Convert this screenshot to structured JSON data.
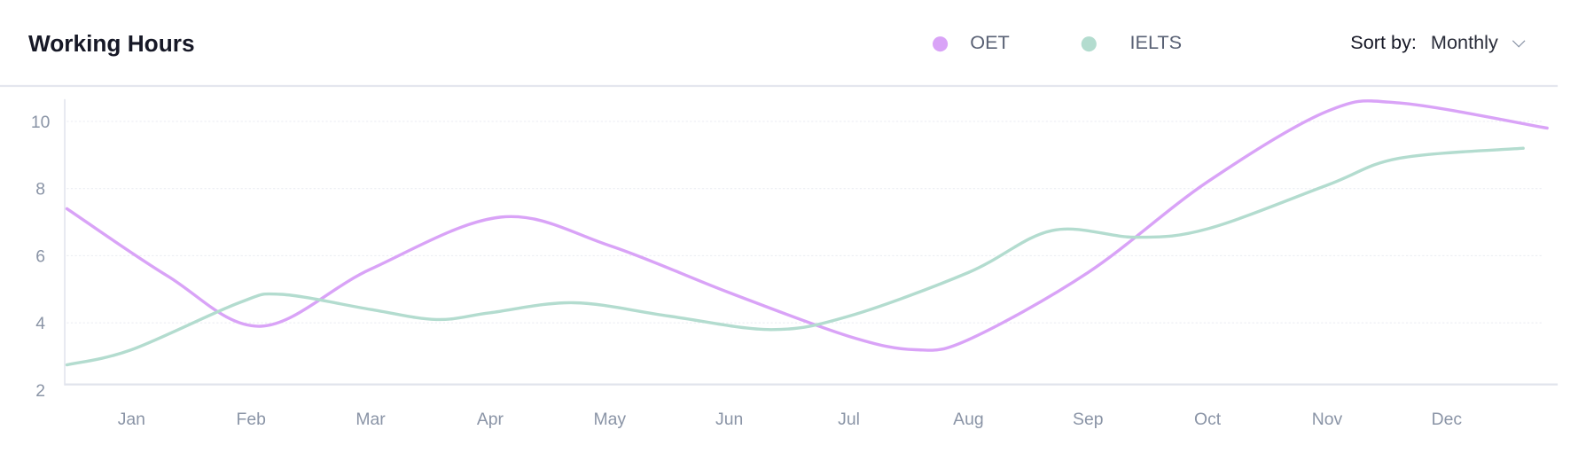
{
  "header": {
    "title": "Working Hours",
    "sort_label": "Sort by:",
    "sort_value": "Monthly"
  },
  "colors": {
    "OET": "#d9a3f7",
    "IELTS": "#b3dccf"
  },
  "chart_data": {
    "type": "line",
    "title": "Working Hours",
    "xlabel": "",
    "ylabel": "",
    "categories": [
      "Jan",
      "Feb",
      "Mar",
      "Apr",
      "May",
      "Jun",
      "Jul",
      "Aug",
      "Sep",
      "Oct",
      "Nov",
      "Dec"
    ],
    "yticks": [
      2,
      4,
      6,
      8,
      10
    ],
    "ylim": [
      2,
      10.6
    ],
    "xlim": [
      0.45,
      12.9
    ],
    "legend_position": "top-center",
    "grid": true,
    "series": [
      {
        "name": "OET",
        "x": [
          0.46,
          1.3,
          2.08,
          3.0,
          4.09,
          5.0,
          6.0,
          7.0,
          7.56,
          8.0,
          9.0,
          10.0,
          11.0,
          11.6,
          12.84
        ],
        "values": [
          7.4,
          5.4,
          3.9,
          5.6,
          7.15,
          6.3,
          4.9,
          3.6,
          3.2,
          3.5,
          5.5,
          8.2,
          10.3,
          10.55,
          9.8
        ]
      },
      {
        "name": "IELTS",
        "x": [
          0.46,
          1.0,
          1.9,
          2.25,
          3.0,
          3.55,
          4.0,
          4.7,
          5.5,
          6.35,
          7.0,
          8.0,
          8.7,
          9.4,
          10.0,
          11.0,
          11.6,
          12.64
        ],
        "values": [
          2.75,
          3.2,
          4.6,
          4.85,
          4.4,
          4.1,
          4.3,
          4.6,
          4.2,
          3.8,
          4.2,
          5.5,
          6.75,
          6.55,
          6.8,
          8.1,
          8.9,
          9.2
        ]
      }
    ]
  }
}
